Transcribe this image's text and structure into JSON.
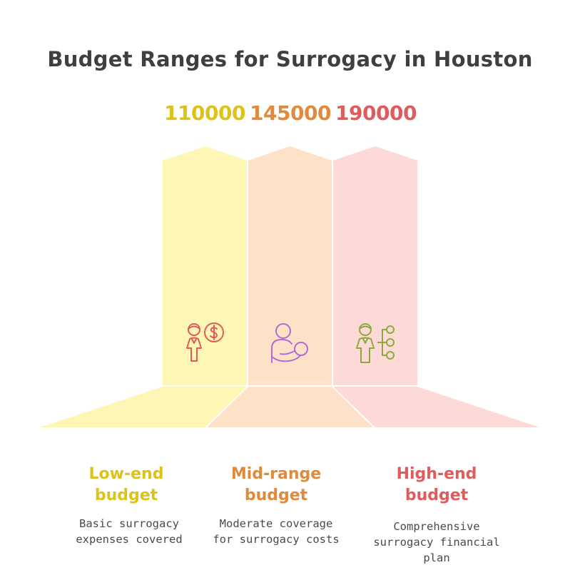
{
  "title": "Budget Ranges for Surrogacy in Houston",
  "colors": {
    "low": "#ddc21a",
    "mid": "#e08a3c",
    "high": "#e05b5b",
    "low_fill": "#fdf6b5",
    "mid_fill": "#fde2c8",
    "high_fill": "#fdd9d7",
    "icon_low": "#e05b5b",
    "icon_mid": "#b36ad6",
    "icon_high": "#8aab3c"
  },
  "tiers": [
    {
      "value": "110000",
      "label_line1": "Low-end",
      "label_line2": "budget",
      "desc_line1": "Basic surrogacy",
      "desc_line2": "expenses covered",
      "desc_line3": "",
      "icon": "person-dollar-icon"
    },
    {
      "value": "145000",
      "label_line1": "Mid-range",
      "label_line2": "budget",
      "desc_line1": "Moderate coverage",
      "desc_line2": "for surrogacy costs",
      "desc_line3": "",
      "icon": "parent-baby-icon"
    },
    {
      "value": "190000",
      "label_line1": "High-end",
      "label_line2": "budget",
      "desc_line1": "Comprehensive",
      "desc_line2": "surrogacy financial",
      "desc_line3": "plan",
      "icon": "person-network-icon"
    }
  ]
}
